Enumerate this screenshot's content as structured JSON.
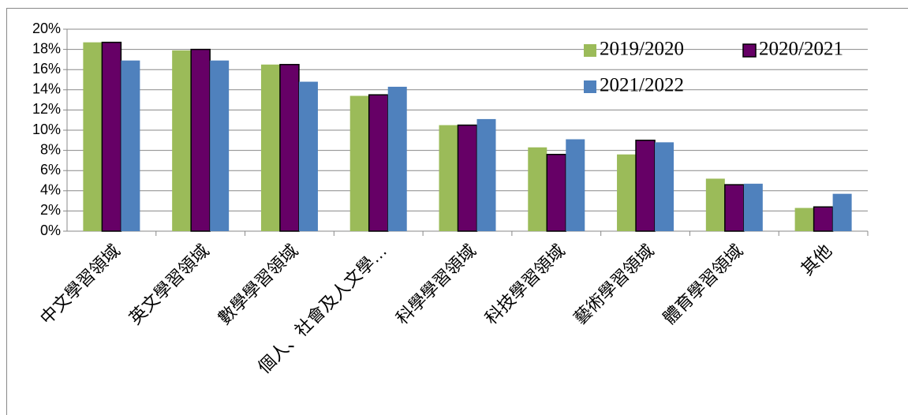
{
  "chart_data": {
    "type": "bar",
    "categories": [
      "中文學習領域",
      "英文學習領域",
      "數學學習領域",
      "個人、社會及人文學…",
      "科學學習領域",
      "科技學習領域",
      "藝術學習領域",
      "體育學習領域",
      "其他"
    ],
    "series": [
      {
        "name": "2019/2020",
        "color": "#9bbb59",
        "values": [
          18.7,
          17.9,
          16.5,
          13.4,
          10.5,
          8.3,
          7.6,
          5.2,
          2.3
        ]
      },
      {
        "name": "2020/2021",
        "color": "#660066",
        "values": [
          18.7,
          18.0,
          16.5,
          13.5,
          10.5,
          7.6,
          9.0,
          4.6,
          2.4
        ]
      },
      {
        "name": "2021/2022",
        "color": "#4f81bd",
        "values": [
          16.9,
          16.9,
          14.8,
          14.3,
          11.1,
          9.1,
          8.8,
          4.7,
          3.7
        ]
      }
    ],
    "ylim": [
      0,
      20
    ],
    "yticks": [
      {
        "value": 0,
        "label": "0%"
      },
      {
        "value": 2,
        "label": "2%"
      },
      {
        "value": 4,
        "label": "4%"
      },
      {
        "value": 6,
        "label": "6%"
      },
      {
        "value": 8,
        "label": "8%"
      },
      {
        "value": 10,
        "label": "10%"
      },
      {
        "value": 12,
        "label": "12%"
      },
      {
        "value": 14,
        "label": "14%"
      },
      {
        "value": 16,
        "label": "16%"
      },
      {
        "value": 18,
        "label": "18%"
      },
      {
        "value": 20,
        "label": "20%"
      }
    ],
    "grid": true,
    "legend": "upper right"
  }
}
